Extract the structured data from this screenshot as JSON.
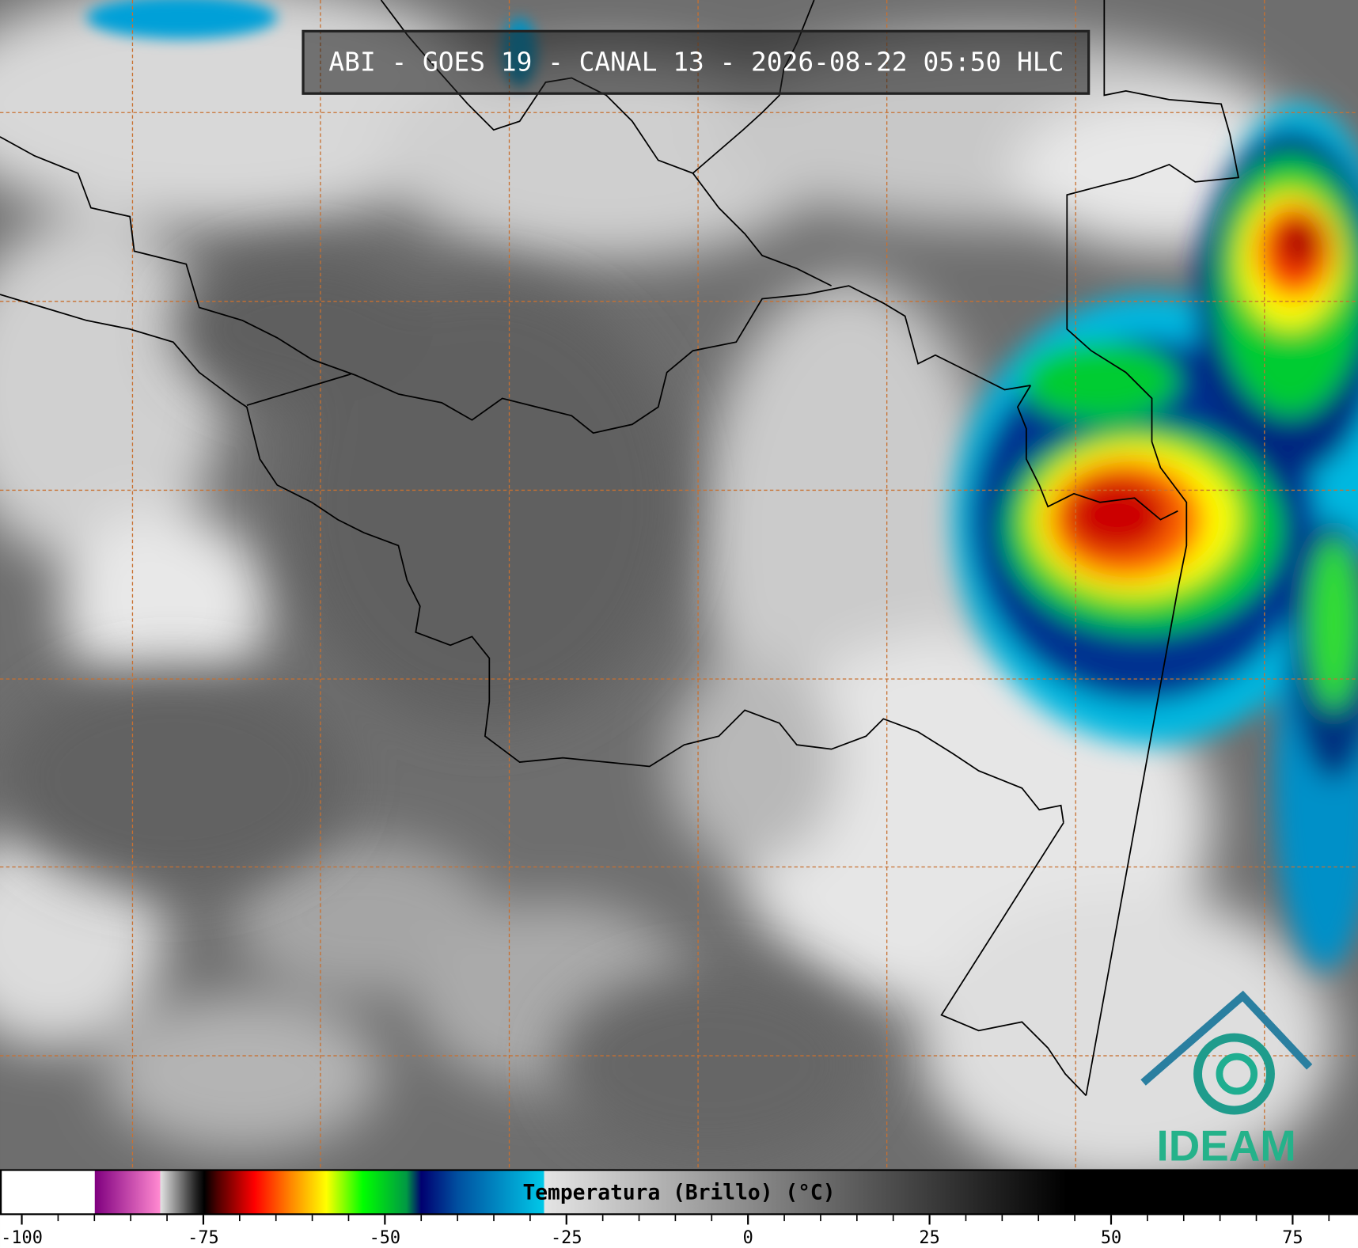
{
  "header": {
    "title": "ABI - GOES 19 - CANAL 13 - 2026-08-22 05:50 HLC"
  },
  "logo": {
    "text": "IDEAM"
  },
  "colorbar": {
    "label": "Temperatura (Brillo) (°C)",
    "xlim": [
      -103,
      84
    ],
    "ticks": [
      -100,
      -75,
      -50,
      -25,
      0,
      25,
      50,
      75
    ],
    "minor_ticks": [
      -95,
      -90,
      -85,
      -80,
      -70,
      -65,
      -60,
      -55,
      -45,
      -40,
      -35,
      -30,
      -20,
      -15,
      -10,
      -5,
      5,
      10,
      15,
      20,
      30,
      35,
      40,
      45,
      55,
      60,
      65,
      70,
      80
    ]
  }
}
